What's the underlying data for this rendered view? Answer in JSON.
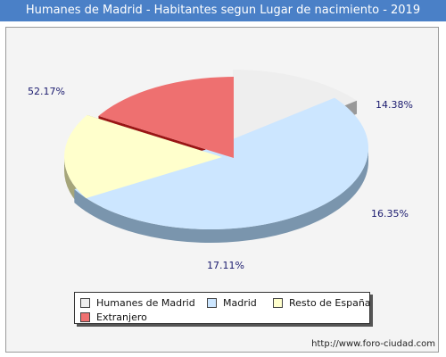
{
  "title": "Humanes de Madrid - Habitantes segun Lugar de nacimiento - 2019",
  "source": "http://www.foro-ciudad.com",
  "chart_data": {
    "type": "pie",
    "title": "Humanes de Madrid - Habitantes segun Lugar de nacimiento - 2019",
    "legend_position": "bottom",
    "three_d": true,
    "exploded": true,
    "slices": [
      {
        "label": "Humanes de Madrid",
        "value": 14.38,
        "value_label": "14.38%",
        "color": "#eeeeee",
        "side_color": "#999999"
      },
      {
        "label": "Madrid",
        "value": 52.17,
        "value_label": "52.17%",
        "color": "#cce6ff",
        "side_color": "#7a95ad"
      },
      {
        "label": "Resto de España",
        "value": 17.11,
        "value_label": "17.11%",
        "color": "#ffffcc",
        "side_color": "#a5a57a"
      },
      {
        "label": "Extranjero",
        "value": 16.35,
        "value_label": "16.35%",
        "color": "#ee7070",
        "side_color": "#9a1515"
      }
    ]
  }
}
